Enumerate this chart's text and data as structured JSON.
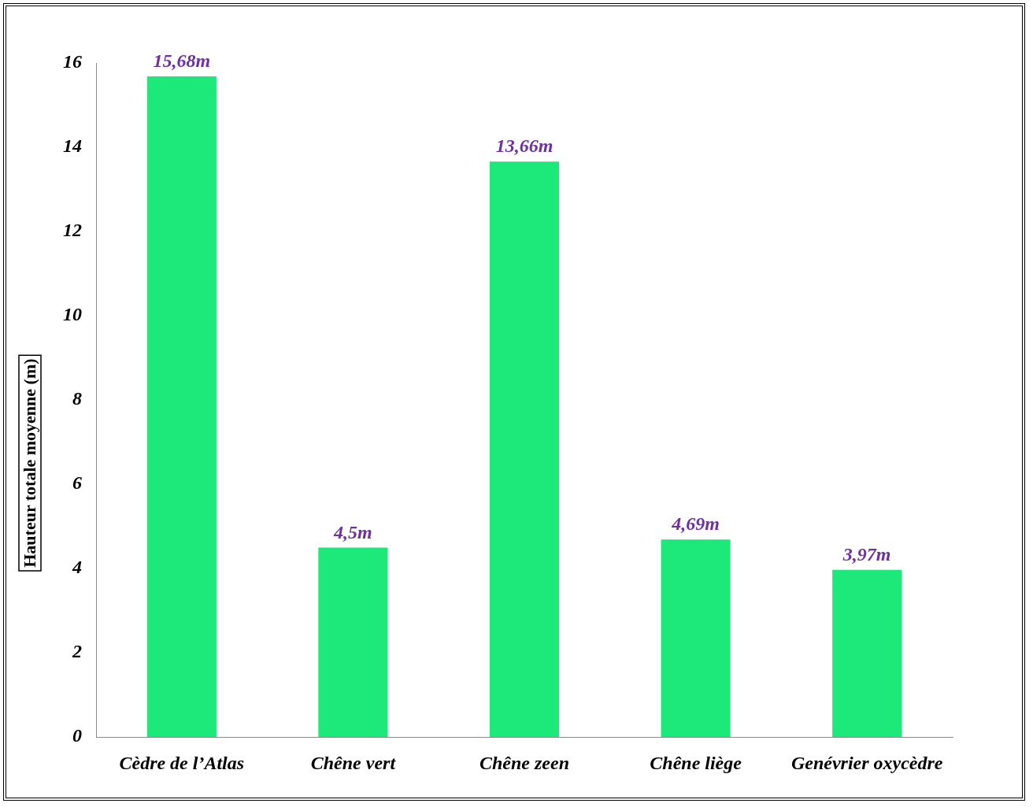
{
  "chart_data": {
    "type": "bar",
    "ylabel": "Hauteur totale moyenne (m)",
    "categories": [
      "Cèdre de l’Atlas",
      "Chêne vert",
      "Chêne zeen",
      "Chêne liège",
      "Genévrier oxycèdre"
    ],
    "values": [
      15.68,
      4.5,
      13.66,
      4.69,
      3.97
    ],
    "value_labels": [
      "15,68m",
      "4,5m",
      "13,66m",
      "4,69m",
      "3,97m"
    ],
    "color": "#1de87a",
    "ylim": [
      0,
      16
    ],
    "yticks": [
      0,
      2,
      4,
      6,
      8,
      10,
      12,
      14,
      16
    ]
  }
}
